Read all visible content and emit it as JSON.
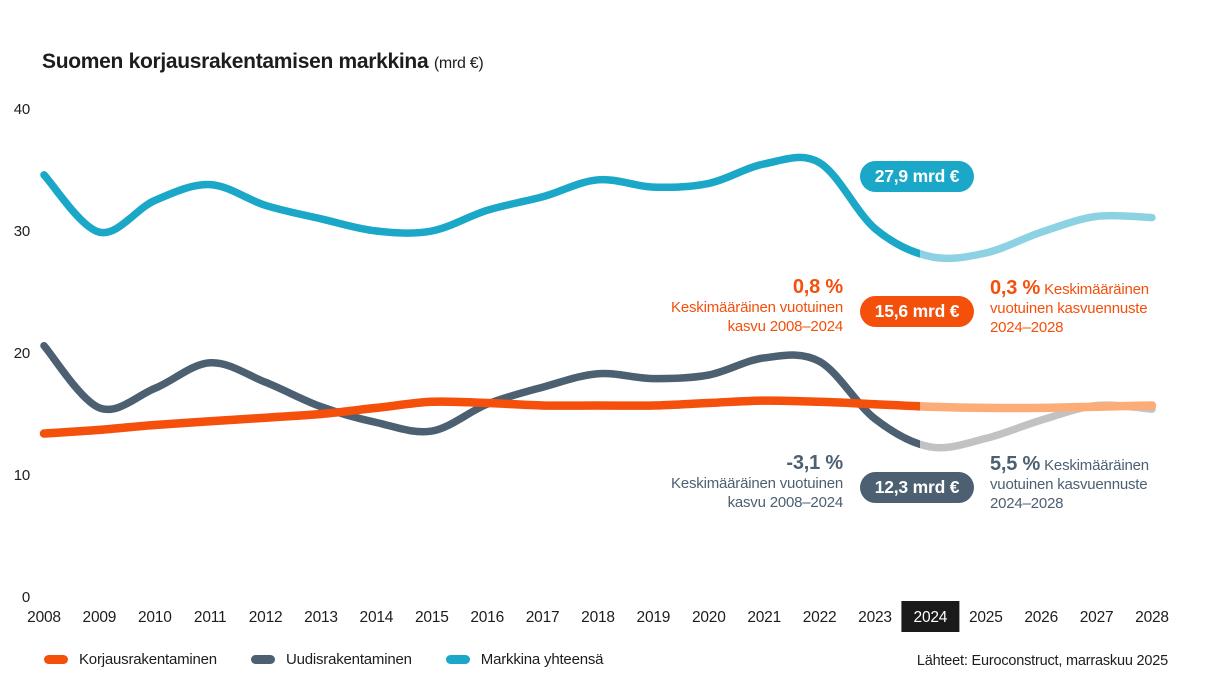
{
  "title": {
    "main": "Suomen korjausrakentamisen markkina",
    "unit": "(mrd €)"
  },
  "source": "Lähteet: Euroconstruct, marraskuu 2025",
  "colors": {
    "renovation": "#f4500c",
    "renovation_forecast": "#fbac77",
    "new_construction": "#4c6072",
    "new_construction_forecast": "#c2c2c3",
    "total": "#1aa7c8",
    "total_forecast": "#8dd2e3",
    "axis_text": "#1d1d1b",
    "highlight_box": "#1a1a1a"
  },
  "legend": [
    {
      "label": "Korjausrakentaminen",
      "color": "#f4500c"
    },
    {
      "label": "Uudisrakentaminen",
      "color": "#4c6072"
    },
    {
      "label": "Markkina yhteensä",
      "color": "#1aa7c8"
    }
  ],
  "annotations": {
    "total_badge": {
      "label": "27,9 mrd €",
      "color": "#1aa7c8"
    },
    "renovation_badge": {
      "label": "15,6 mrd €",
      "color": "#f4500c"
    },
    "new_badge": {
      "label": "12,3 mrd €",
      "color": "#4c6072"
    },
    "renovation_growth": {
      "value": "0,8 %",
      "line1": "Keskimääräinen vuotuinen",
      "line2": "kasvu 2008–2024"
    },
    "renovation_forecast": {
      "value": "0,3 %",
      "line1": "Keskimääräinen",
      "line2": "vuotuinen kasvuennuste",
      "line3": "2024–2028"
    },
    "new_growth": {
      "value": "-3,1 %",
      "line1": "Keskimääräinen vuotuinen",
      "line2": "kasvu 2008–2024"
    },
    "new_forecast": {
      "value": "5,5 %",
      "line1": "Keskimääräinen",
      "line2": "vuotuinen kasvuennuste",
      "line3": "2024–2028"
    }
  },
  "chart_data": {
    "type": "line",
    "title": "Suomen korjausrakentamisen markkina (mrd €)",
    "x": [
      2008,
      2009,
      2010,
      2011,
      2012,
      2013,
      2014,
      2015,
      2016,
      2017,
      2018,
      2019,
      2020,
      2021,
      2022,
      2023,
      2024,
      2025,
      2026,
      2027,
      2028
    ],
    "ylim": [
      0,
      40
    ],
    "yticks": [
      0,
      10,
      20,
      30,
      40
    ],
    "grid": false,
    "legend_position": "bottom",
    "highlight_year": 2024,
    "forecast_start_year": 2024,
    "series": [
      {
        "name": "Markkina yhteensä",
        "color": "#1aa7c8",
        "forecast_color": "#8dd2e3",
        "value_2024_label": "27,9 mrd €",
        "values": [
          34.6,
          29.9,
          32.5,
          33.8,
          32.1,
          31.0,
          30.0,
          30.0,
          31.7,
          32.8,
          34.2,
          33.6,
          33.9,
          35.5,
          35.6,
          30.2,
          27.9,
          28.2,
          29.9,
          31.2,
          31.1
        ]
      },
      {
        "name": "Uudisrakentaminen",
        "color": "#4c6072",
        "forecast_color": "#c2c2c3",
        "value_2024_label": "12,3 mrd €",
        "avg_growth_2008_2024": "-3,1 %",
        "avg_growth_forecast_2024_2028": "5,5 %",
        "values": [
          20.6,
          15.5,
          17.1,
          19.2,
          17.6,
          15.6,
          14.3,
          13.6,
          15.8,
          17.2,
          18.3,
          17.9,
          18.2,
          19.6,
          19.3,
          14.6,
          12.3,
          13.0,
          14.5,
          15.7,
          15.4
        ]
      },
      {
        "name": "Korjausrakentaminen",
        "color": "#f4500c",
        "forecast_color": "#fbac77",
        "value_2024_label": "15,6 mrd €",
        "avg_growth_2008_2024": "0,8 %",
        "avg_growth_forecast_2024_2028": "0,3 %",
        "values": [
          13.4,
          13.7,
          14.1,
          14.4,
          14.7,
          15.0,
          15.5,
          16.0,
          15.9,
          15.7,
          15.7,
          15.7,
          15.9,
          16.1,
          16.0,
          15.8,
          15.6,
          15.5,
          15.5,
          15.6,
          15.7
        ]
      }
    ]
  }
}
